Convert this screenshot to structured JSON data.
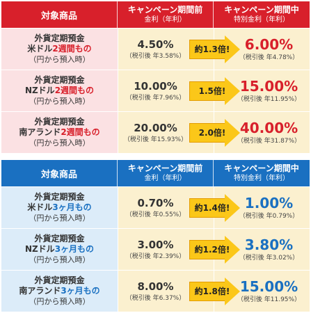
{
  "colors": {
    "red": "#d8202b",
    "blue": "#1a70c1",
    "arrow": "#fbc719"
  },
  "headers": {
    "product": "対象商品",
    "before_title": "キャンペーン期間前",
    "before_sub": "金利（年利）",
    "during_title": "キャンペーン期間中",
    "during_sub": "特別金利（年利）"
  },
  "table_2week": {
    "rows": [
      {
        "line1": "外貨定期預金",
        "line2a": "米ドル",
        "line2b": "2週間もの",
        "line3": "（円から預入時）",
        "before_rate": "4.50%",
        "before_tax": "（税引後 年3.58%）",
        "multiplier": "約1.3倍!",
        "camp_rate": "6.00%",
        "camp_tax": "（税引後 年4.78%）"
      },
      {
        "line1": "外貨定期預金",
        "line2a": "NZドル",
        "line2b": "2週間もの",
        "line3": "（円から預入時）",
        "before_rate": "10.00%",
        "before_tax": "（税引後 年7.96%）",
        "multiplier": "1.5倍!",
        "camp_rate": "15.00%",
        "camp_tax": "（税引後 年11.95%）"
      },
      {
        "line1": "外貨定期預金",
        "line2a": "南アランド",
        "line2b": "2週間もの",
        "line3": "（円から預入時）",
        "before_rate": "20.00%",
        "before_tax": "（税引後 年15.93%）",
        "multiplier": "2.0倍!",
        "camp_rate": "40.00%",
        "camp_tax": "（税引後 年31.87%）"
      }
    ]
  },
  "table_3month": {
    "rows": [
      {
        "line1": "外貨定期預金",
        "line2a": "米ドル",
        "line2b": "3ヶ月もの",
        "line3": "（円から預入時）",
        "before_rate": "0.70%",
        "before_tax": "（税引後 年0.55%）",
        "multiplier": "約1.4倍!",
        "camp_rate": "1.00%",
        "camp_tax": "（税引後 年0.79%）"
      },
      {
        "line1": "外貨定期預金",
        "line2a": "NZドル",
        "line2b": "3ヶ月もの",
        "line3": "（円から預入時）",
        "before_rate": "3.00%",
        "before_tax": "（税引後 年2.39%）",
        "multiplier": "約1.2倍!",
        "camp_rate": "3.80%",
        "camp_tax": "（税引後 年3.02%）"
      },
      {
        "line1": "外貨定期預金",
        "line2a": "南アランド",
        "line2b": "3ヶ月もの",
        "line3": "（円から預入時）",
        "before_rate": "8.00%",
        "before_tax": "（税引後 年6.37%）",
        "multiplier": "約1.8倍!",
        "camp_rate": "15.00%",
        "camp_tax": "（税引後 年11.95%）"
      }
    ]
  }
}
